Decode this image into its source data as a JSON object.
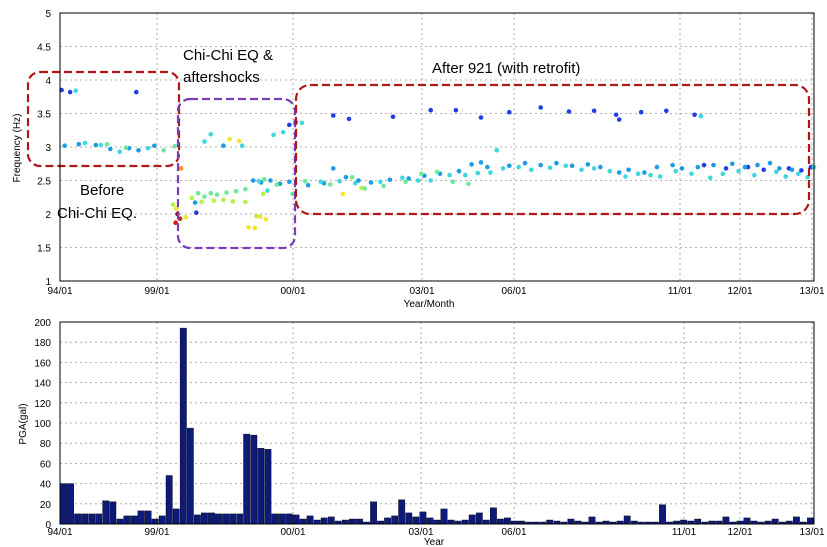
{
  "chart_data": [
    {
      "type": "scatter",
      "title": "",
      "xlabel": "Year/Month",
      "ylabel": "Frequency (Hz)",
      "ylim": [
        1,
        5
      ],
      "yticks": [
        "1",
        "1.5",
        "2",
        "2.5",
        "3",
        "3.5",
        "4",
        "4.5",
        "5"
      ],
      "xticks": [
        "94/01",
        "99/01",
        "00/01",
        "03/01",
        "06/01",
        "11/01",
        "12/01",
        "13/01"
      ],
      "grid": true,
      "annotations": [
        "Before",
        "Chi-Chi EQ.",
        "Chi-Chi EQ &",
        "aftershocks",
        "After 921 (with retrofit)"
      ],
      "series": [
        {
          "color": "#1f3fe0",
          "points": [
            [
              0.5,
              3.85
            ],
            [
              3.2,
              3.82
            ],
            [
              24.3,
              3.82
            ],
            [
              43.4,
              2.02
            ],
            [
              73,
              3.33
            ],
            [
              75,
              3.37
            ],
            [
              87,
              3.47
            ],
            [
              92,
              3.42
            ],
            [
              106,
              3.45
            ],
            [
              118,
              3.55
            ],
            [
              126,
              3.55
            ],
            [
              134,
              3.44
            ],
            [
              143,
              3.52
            ],
            [
              153,
              3.59
            ],
            [
              162,
              3.53
            ],
            [
              170,
              3.54
            ],
            [
              177,
              3.48
            ],
            [
              178,
              3.41
            ],
            [
              185,
              3.52
            ],
            [
              193,
              3.54
            ],
            [
              202,
              3.48
            ],
            [
              205,
              2.73
            ],
            [
              212,
              2.68
            ],
            [
              219,
              2.7
            ],
            [
              224,
              2.66
            ],
            [
              232,
              2.68
            ],
            [
              236,
              2.65
            ],
            [
              239,
              2.7
            ]
          ]
        },
        {
          "color": "#1e9be6",
          "points": [
            [
              1.5,
              3.02
            ],
            [
              6,
              3.04
            ],
            [
              11.4,
              3.03
            ],
            [
              16,
              2.97
            ],
            [
              22,
              2.98
            ],
            [
              25,
              2.95
            ],
            [
              30,
              3.02
            ],
            [
              43,
              2.17
            ],
            [
              52,
              3.02
            ],
            [
              61.5,
              2.5
            ],
            [
              64,
              2.47
            ],
            [
              67,
              2.5
            ],
            [
              70,
              2.45
            ],
            [
              73,
              2.48
            ],
            [
              79,
              2.43
            ],
            [
              84,
              2.46
            ],
            [
              87,
              2.68
            ],
            [
              91,
              2.55
            ],
            [
              95,
              2.5
            ],
            [
              99,
              2.47
            ],
            [
              105,
              2.51
            ],
            [
              111,
              2.53
            ],
            [
              116,
              2.57
            ],
            [
              121,
              2.6
            ],
            [
              127,
              2.64
            ],
            [
              131,
              2.74
            ],
            [
              134,
              2.77
            ],
            [
              136,
              2.7
            ],
            [
              143,
              2.72
            ],
            [
              148,
              2.76
            ],
            [
              153,
              2.73
            ],
            [
              158,
              2.76
            ],
            [
              163,
              2.72
            ],
            [
              168,
              2.74
            ],
            [
              172,
              2.7
            ],
            [
              178,
              2.62
            ],
            [
              181,
              2.66
            ],
            [
              186,
              2.62
            ],
            [
              190,
              2.7
            ],
            [
              195,
              2.73
            ],
            [
              198,
              2.68
            ],
            [
              203,
              2.7
            ],
            [
              208,
              2.73
            ],
            [
              214,
              2.75
            ],
            [
              218,
              2.7
            ],
            [
              222,
              2.73
            ],
            [
              226,
              2.76
            ],
            [
              229,
              2.68
            ],
            [
              233,
              2.66
            ]
          ]
        },
        {
          "color": "#3fd6e0",
          "points": [
            [
              5,
              3.84
            ],
            [
              8,
              3.06
            ],
            [
              13,
              3.03
            ],
            [
              19,
              2.93
            ],
            [
              28,
              2.98
            ],
            [
              46,
              3.08
            ],
            [
              48,
              3.19
            ],
            [
              58,
              3.02
            ],
            [
              63.3,
              2.49
            ],
            [
              66,
              2.35
            ],
            [
              68,
              3.18
            ],
            [
              71,
              3.22
            ],
            [
              77,
              3.36
            ],
            [
              83,
              2.48
            ],
            [
              89,
              2.49
            ],
            [
              94,
              2.46
            ],
            [
              102,
              2.48
            ],
            [
              109,
              2.54
            ],
            [
              114,
              2.5
            ],
            [
              118,
              2.5
            ],
            [
              124,
              2.58
            ],
            [
              129,
              2.58
            ],
            [
              133,
              2.61
            ],
            [
              137,
              2.62
            ],
            [
              139,
              2.95
            ],
            [
              141,
              2.68
            ],
            [
              146,
              2.7
            ],
            [
              150,
              2.66
            ],
            [
              156,
              2.69
            ],
            [
              161,
              2.72
            ],
            [
              166,
              2.66
            ],
            [
              170,
              2.68
            ],
            [
              175,
              2.64
            ],
            [
              180,
              2.56
            ],
            [
              184,
              2.6
            ],
            [
              188,
              2.58
            ],
            [
              191,
              2.56
            ],
            [
              196,
              2.64
            ],
            [
              201,
              2.6
            ],
            [
              204,
              3.46
            ],
            [
              207,
              2.54
            ],
            [
              211,
              2.6
            ],
            [
              216,
              2.64
            ],
            [
              221,
              2.58
            ],
            [
              228,
              2.63
            ],
            [
              231,
              2.56
            ],
            [
              235,
              2.6
            ],
            [
              238,
              2.55
            ],
            [
              240,
              2.7
            ]
          ]
        },
        {
          "color": "#6fe89a",
          "points": [
            [
              15,
              3.04
            ],
            [
              21,
              2.99
            ],
            [
              33,
              2.95
            ],
            [
              36.5,
              3.01
            ],
            [
              44,
              2.31
            ],
            [
              46,
              2.26
            ],
            [
              48,
              2.31
            ],
            [
              50,
              2.29
            ],
            [
              53,
              2.32
            ],
            [
              56,
              2.34
            ],
            [
              59,
              2.37
            ],
            [
              65,
              2.52
            ],
            [
              69,
              2.44
            ],
            [
              74,
              2.3
            ],
            [
              78,
              2.49
            ],
            [
              86,
              2.44
            ],
            [
              93,
              2.55
            ],
            [
              97,
              2.38
            ],
            [
              103,
              2.42
            ],
            [
              110,
              2.48
            ],
            [
              115,
              2.6
            ],
            [
              120,
              2.63
            ],
            [
              125,
              2.48
            ],
            [
              130,
              2.45
            ]
          ]
        },
        {
          "color": "#b6f04a",
          "points": [
            [
              36,
              2.14
            ],
            [
              42,
              2.24
            ],
            [
              45,
              2.18
            ],
            [
              49,
              2.2
            ],
            [
              52,
              2.21
            ],
            [
              55,
              2.19
            ],
            [
              59,
              2.18
            ],
            [
              62.5,
              1.97
            ],
            [
              64.6,
              2.3
            ],
            [
              96,
              2.39
            ]
          ]
        },
        {
          "color": "#f2e52a",
          "points": [
            [
              37,
              2.08
            ],
            [
              40,
              1.95
            ],
            [
              54,
              3.12
            ],
            [
              57,
              3.09
            ],
            [
              60,
              1.8
            ],
            [
              62,
              1.79
            ],
            [
              63.7,
              1.96
            ],
            [
              65.5,
              1.92
            ],
            [
              90,
              2.3
            ]
          ]
        },
        {
          "color": "#ff8a1a",
          "points": [
            [
              38.5,
              2.68
            ]
          ]
        },
        {
          "color": "#d21e14",
          "points": [
            [
              36.8,
              1.87
            ],
            [
              38.2,
              1.93
            ]
          ]
        },
        {
          "color": "#8f1010",
          "points": [
            [
              37.4,
              2.0
            ]
          ]
        }
      ]
    },
    {
      "type": "bar",
      "title": "",
      "xlabel": "Year",
      "ylabel": "PGA(gal)",
      "ylim": [
        0,
        200
      ],
      "yticks": [
        "0",
        "20",
        "40",
        "60",
        "80",
        "100",
        "120",
        "140",
        "160",
        "180",
        "200"
      ],
      "xticks": [
        "94/01",
        "99/01",
        "00/01",
        "03/01",
        "06/01",
        "11/01",
        "12/01",
        "13/01"
      ],
      "grid": true,
      "color": "#0d1a7a",
      "bars": [
        [
          0,
          40
        ],
        [
          1,
          40
        ],
        [
          2,
          10
        ],
        [
          3,
          10
        ],
        [
          4,
          10
        ],
        [
          5,
          10
        ],
        [
          6,
          23
        ],
        [
          7,
          22
        ],
        [
          8,
          5
        ],
        [
          9,
          8
        ],
        [
          10,
          8
        ],
        [
          11,
          13
        ],
        [
          12,
          13
        ],
        [
          13,
          5
        ],
        [
          14,
          8
        ],
        [
          15,
          48
        ],
        [
          16,
          15
        ],
        [
          17,
          194
        ],
        [
          18,
          95
        ],
        [
          19,
          9
        ],
        [
          20,
          11
        ],
        [
          21,
          11
        ],
        [
          22,
          10
        ],
        [
          23,
          10
        ],
        [
          24,
          10
        ],
        [
          25,
          10
        ],
        [
          26,
          89
        ],
        [
          27,
          88
        ],
        [
          28,
          75
        ],
        [
          29,
          74
        ],
        [
          30,
          10
        ],
        [
          31,
          10
        ],
        [
          32,
          10
        ],
        [
          33,
          9
        ],
        [
          34,
          5
        ],
        [
          35,
          8
        ],
        [
          36,
          4
        ],
        [
          37,
          6
        ],
        [
          38,
          7
        ],
        [
          39,
          3
        ],
        [
          40,
          4
        ],
        [
          41,
          5
        ],
        [
          42,
          5
        ],
        [
          43,
          2
        ],
        [
          44,
          22
        ],
        [
          45,
          3
        ],
        [
          46,
          6
        ],
        [
          47,
          8
        ],
        [
          48,
          24
        ],
        [
          49,
          11
        ],
        [
          50,
          7
        ],
        [
          51,
          12
        ],
        [
          52,
          6
        ],
        [
          53,
          4
        ],
        [
          54,
          15
        ],
        [
          55,
          4
        ],
        [
          56,
          3
        ],
        [
          57,
          4
        ],
        [
          58,
          9
        ],
        [
          59,
          11
        ],
        [
          60,
          4
        ],
        [
          61,
          16
        ],
        [
          62,
          5
        ],
        [
          63,
          6
        ],
        [
          64,
          3
        ],
        [
          65,
          3
        ],
        [
          66,
          2
        ],
        [
          67,
          2
        ],
        [
          68,
          2
        ],
        [
          69,
          4
        ],
        [
          70,
          3
        ],
        [
          71,
          2
        ],
        [
          72,
          5
        ],
        [
          73,
          3
        ],
        [
          74,
          2
        ],
        [
          75,
          7
        ],
        [
          76,
          2
        ],
        [
          77,
          3
        ],
        [
          78,
          2
        ],
        [
          79,
          3
        ],
        [
          80,
          8
        ],
        [
          81,
          3
        ],
        [
          82,
          2
        ],
        [
          83,
          2
        ],
        [
          84,
          2
        ],
        [
          85,
          19
        ],
        [
          86,
          2
        ],
        [
          87,
          3
        ],
        [
          88,
          4
        ],
        [
          89,
          3
        ],
        [
          90,
          5
        ],
        [
          91,
          2
        ],
        [
          92,
          3
        ],
        [
          93,
          3
        ],
        [
          94,
          7
        ],
        [
          95,
          2
        ],
        [
          96,
          3
        ],
        [
          97,
          6
        ],
        [
          98,
          3
        ],
        [
          99,
          2
        ],
        [
          100,
          3
        ],
        [
          101,
          5
        ],
        [
          102,
          2
        ],
        [
          103,
          3
        ],
        [
          104,
          7
        ],
        [
          105,
          2
        ],
        [
          106,
          6
        ]
      ]
    }
  ]
}
